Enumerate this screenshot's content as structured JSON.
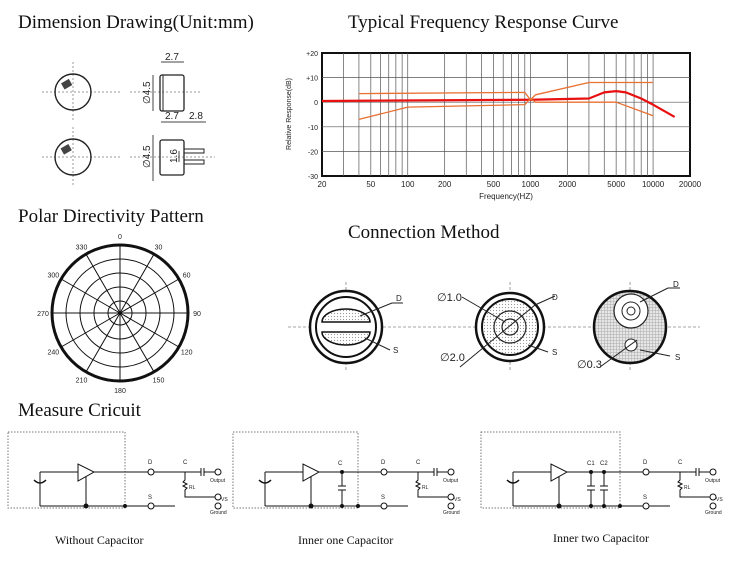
{
  "titles": {
    "dimension": "Dimension Drawing(Unit:mm)",
    "frequency": "Typical Frequency Response Curve",
    "polar": "Polar Directivity Pattern",
    "connection": "Connection Method",
    "measure": "Measure Cricuit"
  },
  "dimension": {
    "top_width": "2.7",
    "top_diameter": "∅4.5",
    "bottom_width": "2.7",
    "bottom_pin": "2.8",
    "bottom_diameter": "∅4.5",
    "pin_spacing": "1.6"
  },
  "chart_data": {
    "type": "line",
    "title": "Typical Frequency Response Curve",
    "xlabel": "Frequency(HZ)",
    "ylabel": "Relative Response(dB)",
    "xscale": "log",
    "xlim": [
      20,
      20000
    ],
    "ylim": [
      -30,
      20
    ],
    "xticks": [
      "20",
      "50",
      "100",
      "200",
      "500",
      "1000",
      "2000",
      "5000",
      "10000",
      "20000"
    ],
    "yticks": [
      "+20",
      "+10",
      "0",
      "-10",
      "-20",
      "-30"
    ],
    "grid": true,
    "series": [
      {
        "name": "response",
        "color": "#e81010",
        "x": [
          20,
          1000,
          3000,
          4000,
          5000,
          6000,
          8000,
          10000,
          15000
        ],
        "y": [
          0.5,
          1,
          1.5,
          4,
          4.5,
          4,
          1.5,
          -1,
          -6
        ]
      },
      {
        "name": "upper-limit",
        "color": "#e87030",
        "x": [
          40,
          900,
          1000,
          1100,
          3000,
          10000
        ],
        "y": [
          3.5,
          4,
          1,
          3,
          8,
          8
        ]
      },
      {
        "name": "lower-limit",
        "color": "#e87030",
        "x": [
          40,
          100,
          900,
          1000,
          1100,
          5000,
          10000
        ],
        "y": [
          -7,
          -2,
          -1,
          1.5,
          0,
          0,
          -5.5
        ]
      }
    ]
  },
  "polar": {
    "angles": [
      "0",
      "30",
      "60",
      "90",
      "120",
      "150",
      "180",
      "210",
      "240",
      "270",
      "300",
      "330"
    ]
  },
  "connection": {
    "labels": {
      "d": "D",
      "s": "S",
      "d1": "∅1.0",
      "d2": "∅2.0",
      "d3": "∅0.3"
    }
  },
  "circuits": [
    {
      "caption": "Without Capacitor",
      "d": "D",
      "s": "S",
      "c": "C",
      "rl": "RL",
      "output": "Output",
      "vs": "VS",
      "ground": "Ground",
      "inner_caps": []
    },
    {
      "caption": "Inner one Capacitor",
      "d": "D",
      "s": "S",
      "c": "C",
      "rl": "RL",
      "output": "Output",
      "vs": "VS",
      "ground": "Ground",
      "inner_caps": [
        "C"
      ]
    },
    {
      "caption": "Inner two Capacitor",
      "d": "D",
      "s": "S",
      "c": "C",
      "rl": "RL",
      "output": "Output",
      "vs": "VS",
      "ground": "Ground",
      "inner_caps": [
        "C1",
        "C2"
      ]
    }
  ]
}
